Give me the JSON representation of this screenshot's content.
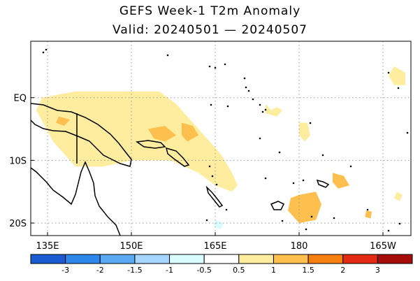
{
  "title": "GEFS Week-1 T2m Anomaly",
  "subtitle": "Valid: 20240501 — 20240507",
  "map": {
    "lon_range": [
      132,
      200
    ],
    "lat_range": [
      -22,
      9
    ],
    "lon_ticks": [
      {
        "lon": 135,
        "label": "135E"
      },
      {
        "lon": 150,
        "label": "150E"
      },
      {
        "lon": 165,
        "label": "165E"
      },
      {
        "lon": 180,
        "label": "180"
      },
      {
        "lon": 195,
        "label": "165W"
      }
    ],
    "lat_ticks": [
      {
        "lat": 0,
        "label": "EQ"
      },
      {
        "lat": -10,
        "label": "10S"
      },
      {
        "lat": -20,
        "label": "20S"
      }
    ],
    "grid": "dotted"
  },
  "anomaly_areas": [
    {
      "level": "0.5",
      "color": "#ffed9f",
      "points": [
        [
          134,
          0
        ],
        [
          140,
          1
        ],
        [
          147,
          1
        ],
        [
          155,
          1
        ],
        [
          158,
          -1
        ],
        [
          160,
          -3
        ],
        [
          163,
          -6
        ],
        [
          166,
          -9
        ],
        [
          168,
          -12
        ],
        [
          169,
          -14
        ],
        [
          168,
          -15
        ],
        [
          165,
          -14
        ],
        [
          162,
          -12
        ],
        [
          157,
          -10
        ],
        [
          150,
          -10
        ],
        [
          145,
          -11
        ],
        [
          140,
          -11
        ],
        [
          136,
          -7
        ],
        [
          133,
          -2
        ]
      ]
    },
    {
      "level": "0.5",
      "color": "#ffed9f",
      "points": [
        [
          180,
          -4
        ],
        [
          181.5,
          -4
        ],
        [
          182,
          -6
        ],
        [
          181,
          -7
        ],
        [
          180,
          -6
        ]
      ]
    },
    {
      "level": "0.5",
      "color": "#ffed9f",
      "points": [
        [
          174,
          -1
        ],
        [
          175,
          -2
        ],
        [
          176,
          -1.5
        ],
        [
          177,
          -2
        ],
        [
          176,
          -3
        ],
        [
          174,
          -2.5
        ]
      ]
    },
    {
      "level": "0.5",
      "color": "#ffed9f",
      "points": [
        [
          197,
          5
        ],
        [
          199,
          4
        ],
        [
          199,
          2
        ],
        [
          197,
          2
        ],
        [
          196,
          3.5
        ]
      ]
    },
    {
      "level": "0.5",
      "color": "#ffed9f",
      "points": [
        [
          197.5,
          -15
        ],
        [
          198.5,
          -15.5
        ],
        [
          198,
          -16.5
        ],
        [
          197,
          -16
        ]
      ]
    },
    {
      "level": "1",
      "color": "#fdbf4d",
      "points": [
        [
          180,
          -15.5
        ],
        [
          183,
          -15
        ],
        [
          184,
          -17
        ],
        [
          183,
          -19.5
        ],
        [
          180,
          -20
        ],
        [
          178,
          -18
        ],
        [
          178.5,
          -16
        ]
      ]
    },
    {
      "level": "1",
      "color": "#fdbf4d",
      "points": [
        [
          186,
          -12
        ],
        [
          188,
          -12.5
        ],
        [
          189,
          -14
        ],
        [
          187,
          -14.5
        ],
        [
          186,
          -13.5
        ]
      ]
    },
    {
      "level": "1",
      "color": "#fdbf4d",
      "points": [
        [
          153,
          -5
        ],
        [
          156,
          -4.5
        ],
        [
          158,
          -6
        ],
        [
          156,
          -7
        ],
        [
          154,
          -6.5
        ]
      ]
    },
    {
      "level": "1",
      "color": "#fdbf4d",
      "points": [
        [
          159,
          -4
        ],
        [
          161,
          -4.5
        ],
        [
          162,
          -6
        ],
        [
          160,
          -7
        ],
        [
          159,
          -6
        ]
      ]
    },
    {
      "level": "1",
      "color": "#fdbf4d",
      "points": [
        [
          137,
          -3
        ],
        [
          139,
          -3.5
        ],
        [
          138,
          -4.5
        ],
        [
          136.5,
          -4
        ]
      ]
    },
    {
      "level": "1",
      "color": "#fdbf4d",
      "points": [
        [
          192,
          -18
        ],
        [
          193,
          -18.2
        ],
        [
          192.8,
          -19.3
        ],
        [
          191.8,
          -19
        ]
      ]
    },
    {
      "level": "-0.5",
      "color": "#d9fcff",
      "points": [
        [
          165,
          -19.5
        ],
        [
          166.5,
          -20
        ],
        [
          166,
          -21
        ],
        [
          164.8,
          -20.6
        ]
      ]
    }
  ],
  "colorbar": {
    "colors": [
      "#1a5bd1",
      "#2d86ea",
      "#5ba8f5",
      "#a6d6fb",
      "#d9fcff",
      "#ffffff",
      "#ffed9f",
      "#fdbf4d",
      "#f77f0f",
      "#e32a12",
      "#a70d08"
    ],
    "labels": [
      "-3",
      "-2",
      "-1.5",
      "-1",
      "-0.5",
      "0.5",
      "1",
      "1.5",
      "2",
      "3"
    ]
  }
}
